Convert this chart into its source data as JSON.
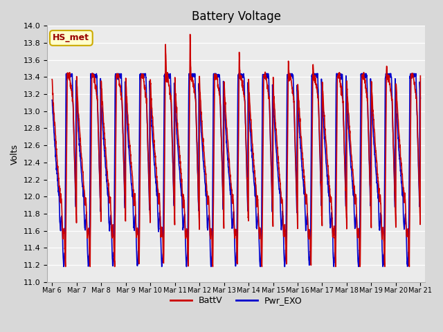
{
  "title": "Battery Voltage",
  "ylabel": "Volts",
  "ylim": [
    11.0,
    14.0
  ],
  "yticks": [
    11.0,
    11.2,
    11.4,
    11.6,
    11.8,
    12.0,
    12.2,
    12.4,
    12.6,
    12.8,
    13.0,
    13.2,
    13.4,
    13.6,
    13.8,
    14.0
  ],
  "xtick_labels": [
    "Mar 6",
    "Mar 7",
    "Mar 8",
    "Mar 9",
    "Mar 10",
    "Mar 11",
    "Mar 12",
    "Mar 13",
    "Mar 14",
    "Mar 15",
    "Mar 16",
    "Mar 17",
    "Mar 18",
    "Mar 19",
    "Mar 20",
    "Mar 21"
  ],
  "batt_color": "#cc0000",
  "pwr_color": "#0000cc",
  "line_width": 1.2,
  "fig_bg_color": "#d8d8d8",
  "plot_bg_color": "#ebebeb",
  "annotation_text": "HS_met",
  "annotation_facecolor": "#ffffcc",
  "annotation_edgecolor": "#ccaa00",
  "annotation_textcolor": "#990000",
  "legend_batt": "BattV",
  "legend_pwr": "Pwr_EXO",
  "title_fontsize": 12,
  "axis_label_fontsize": 9,
  "tick_fontsize": 8,
  "xtick_fontsize": 7,
  "batt_peaks": [
    0,
    0,
    0,
    0,
    0.35,
    0.45,
    0,
    0.25,
    0,
    0.2,
    0.15,
    0,
    0,
    0.15,
    0
  ],
  "cycle_period": 1.0,
  "n_days": 15,
  "n_per_day": 144
}
